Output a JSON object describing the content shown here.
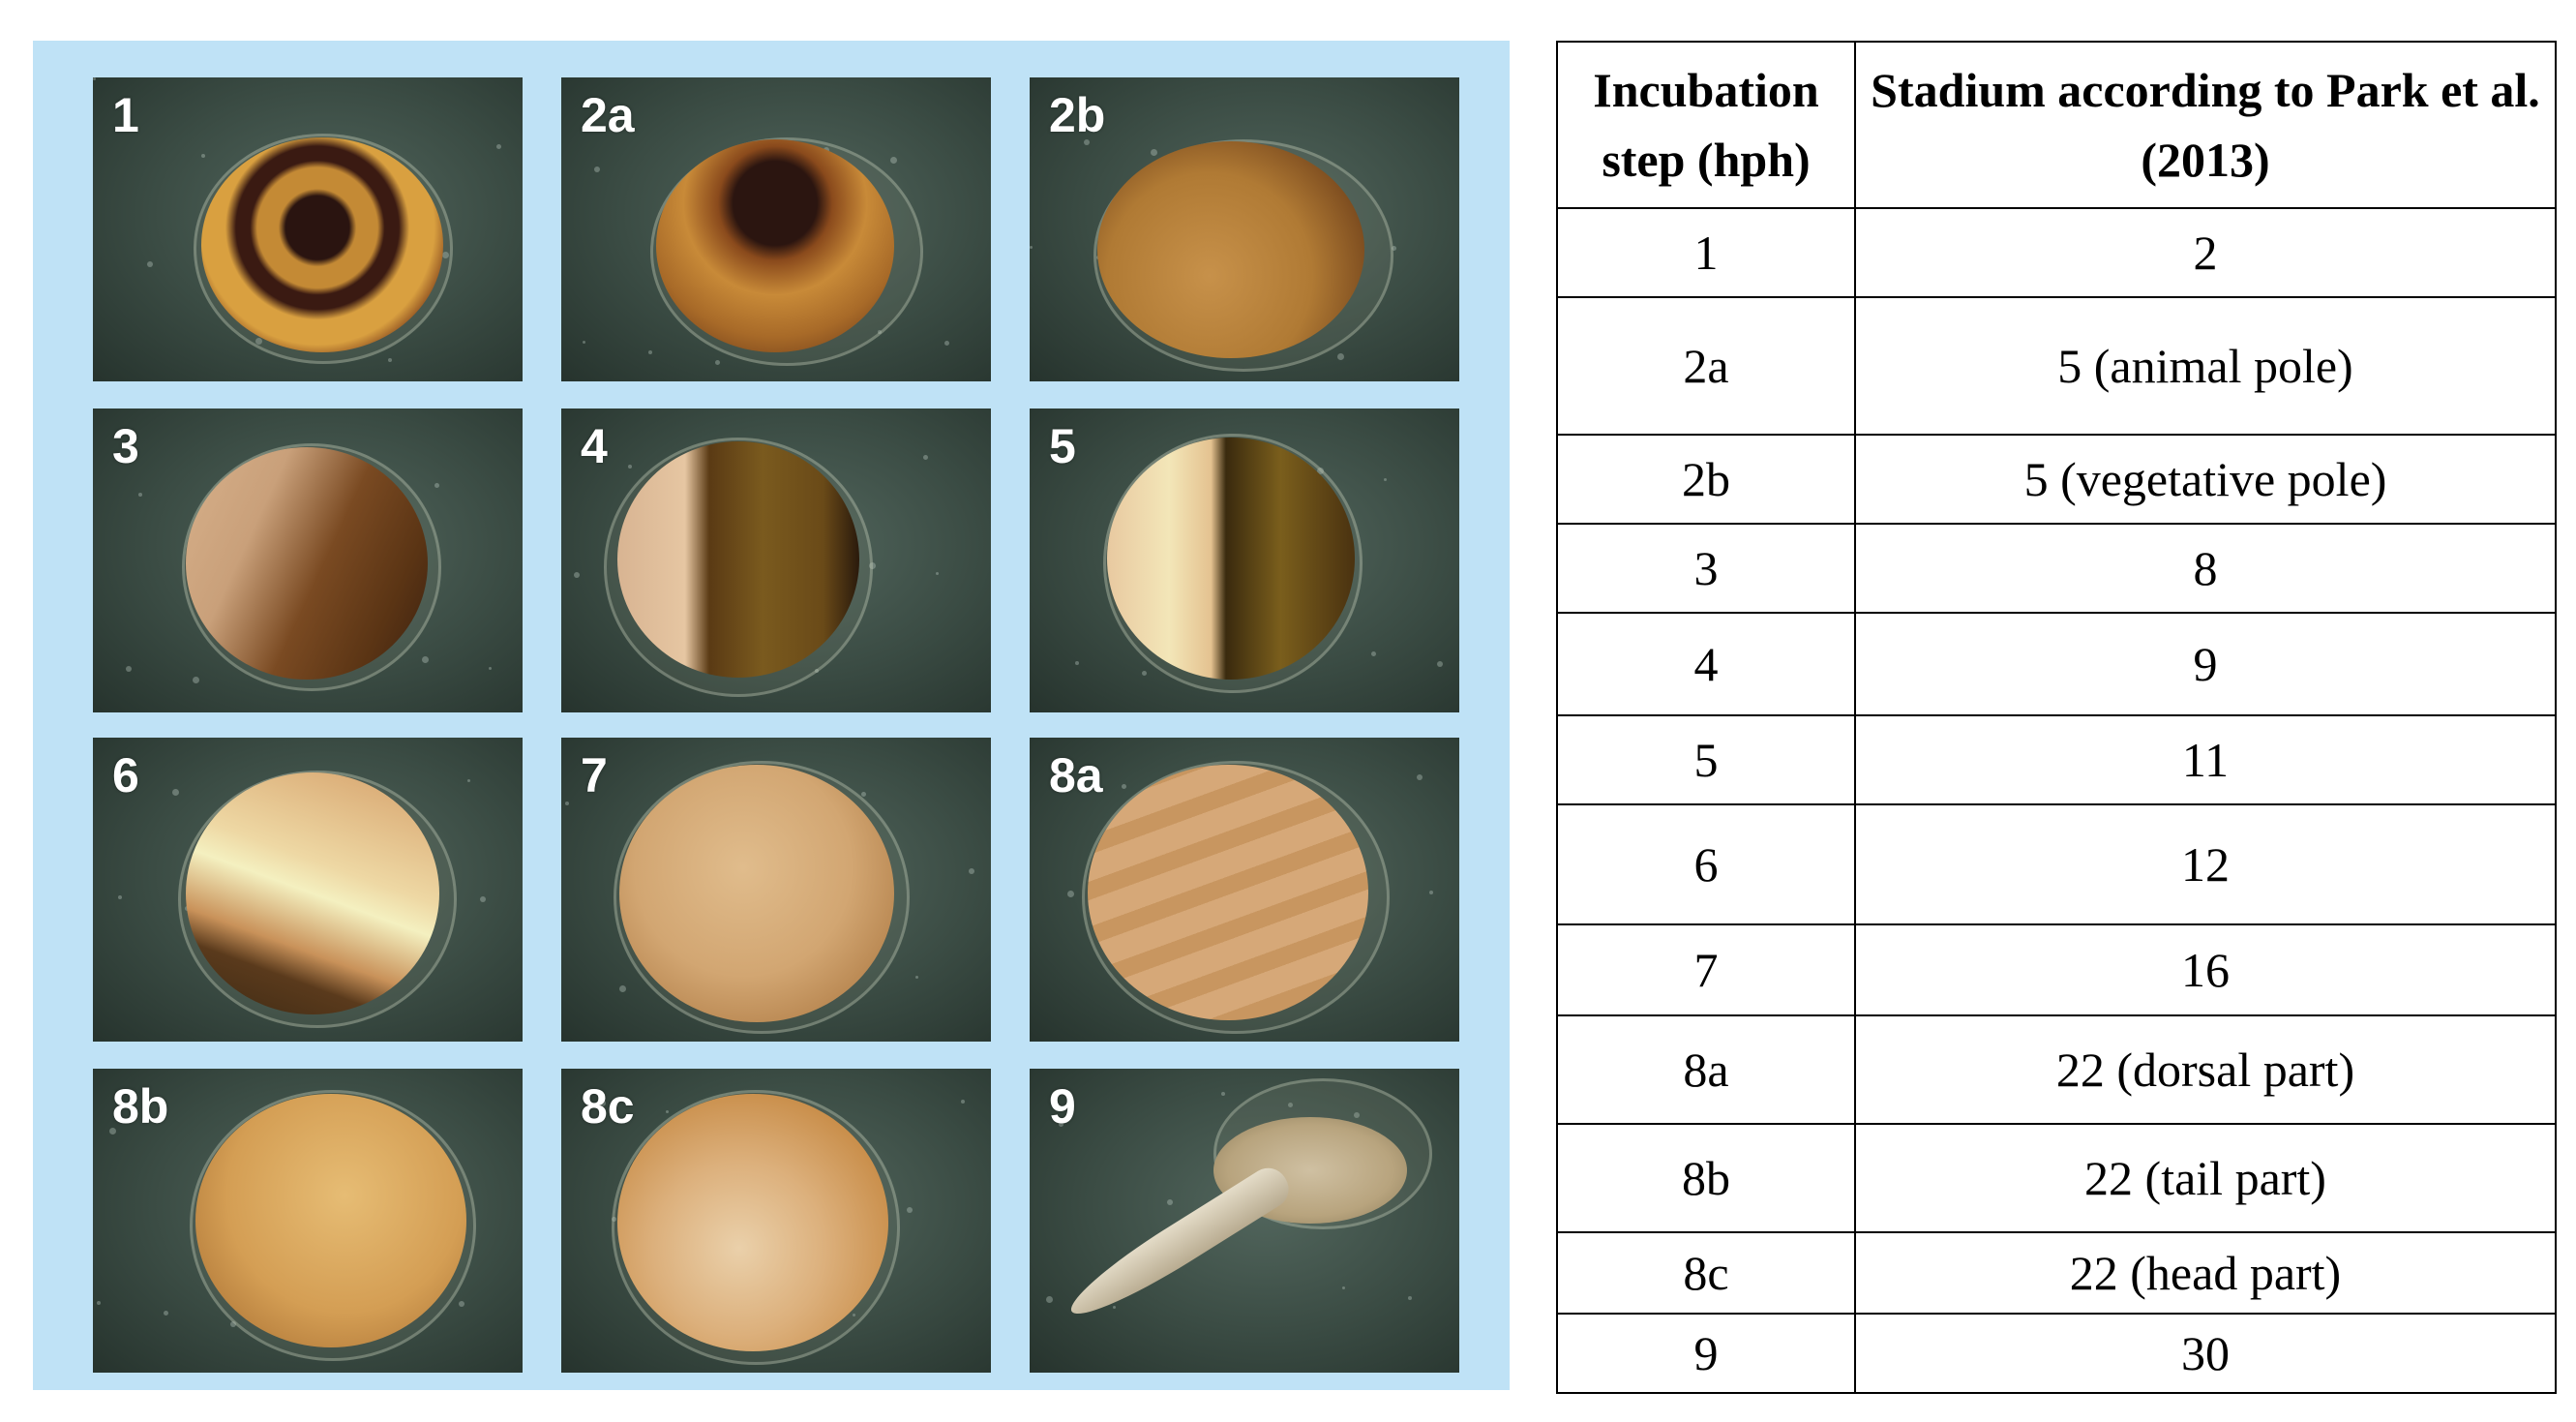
{
  "figure": {
    "panels": [
      {
        "label": "1"
      },
      {
        "label": "2a"
      },
      {
        "label": "2b"
      },
      {
        "label": "3"
      },
      {
        "label": "4"
      },
      {
        "label": "5"
      },
      {
        "label": "6"
      },
      {
        "label": "7"
      },
      {
        "label": "8a"
      },
      {
        "label": "8b"
      },
      {
        "label": "8c"
      },
      {
        "label": "9"
      }
    ],
    "panel_background_color": "#bfe2f6"
  },
  "table": {
    "headers": {
      "step": "Incubation step (hph)",
      "stadium": "Stadium according to Park et al. (2013)"
    },
    "rows": [
      {
        "step": "1",
        "stadium": "2"
      },
      {
        "step": "2a",
        "stadium": "5 (animal pole)"
      },
      {
        "step": "2b",
        "stadium": "5 (vegetative pole)"
      },
      {
        "step": "3",
        "stadium": "8"
      },
      {
        "step": "4",
        "stadium": "9"
      },
      {
        "step": "5",
        "stadium": "11"
      },
      {
        "step": "6",
        "stadium": "12"
      },
      {
        "step": "7",
        "stadium": "16"
      },
      {
        "step": "8a",
        "stadium": "22 (dorsal part)"
      },
      {
        "step": "8b",
        "stadium": "22 (tail part)"
      },
      {
        "step": "8c",
        "stadium": "22 (head part)"
      },
      {
        "step": "9",
        "stadium": "30"
      }
    ]
  }
}
